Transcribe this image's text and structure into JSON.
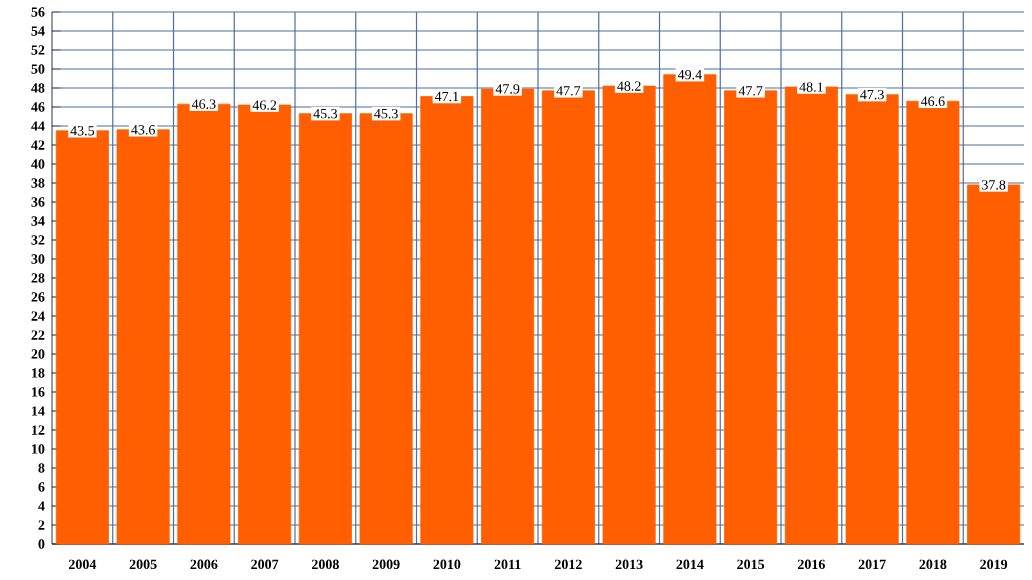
{
  "chart_data": {
    "type": "bar",
    "categories": [
      "2004",
      "2005",
      "2006",
      "2007",
      "2008",
      "2009",
      "2010",
      "2011",
      "2012",
      "2013",
      "2014",
      "2015",
      "2016",
      "2017",
      "2018",
      "2019"
    ],
    "values": [
      43.5,
      43.6,
      46.3,
      46.2,
      45.3,
      45.3,
      47.1,
      47.9,
      47.7,
      48.2,
      49.4,
      47.7,
      48.1,
      47.3,
      46.6,
      37.8
    ],
    "color": "#ff5f00",
    "ylim": [
      0,
      56
    ],
    "yticks": [
      0,
      2,
      4,
      6,
      8,
      10,
      12,
      14,
      16,
      18,
      20,
      22,
      24,
      26,
      28,
      30,
      32,
      34,
      36,
      38,
      40,
      42,
      44,
      46,
      48,
      50,
      52,
      54,
      56
    ],
    "grid": true,
    "data_labels": true
  }
}
